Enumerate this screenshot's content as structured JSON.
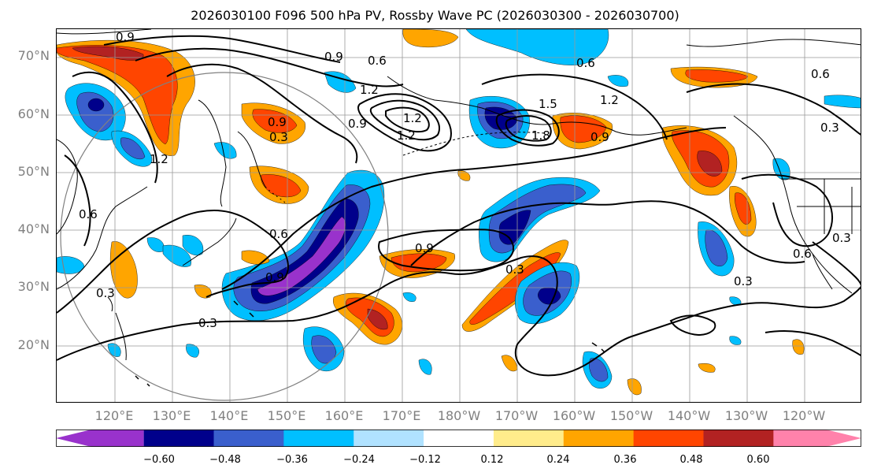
{
  "title": "2026030100 F096 500 hPa PV, Rossby Wave PC (2026030300 - 2026030700)",
  "map": {
    "lat_labels": [
      "70°N",
      "60°N",
      "50°N",
      "40°N",
      "30°N",
      "20°N"
    ],
    "lon_labels": [
      "120°E",
      "130°E",
      "140°E",
      "150°E",
      "160°E",
      "170°E",
      "180°W",
      "170°W",
      "160°W",
      "150°W",
      "140°W",
      "130°W",
      "120°W"
    ],
    "contour_labels": [
      {
        "id": "c1",
        "text": "0.9"
      },
      {
        "id": "c2",
        "text": "0.9"
      },
      {
        "id": "c3",
        "text": "0.6"
      },
      {
        "id": "c4",
        "text": "1.2"
      },
      {
        "id": "c5",
        "text": "0.9"
      },
      {
        "id": "c6",
        "text": "0.6"
      },
      {
        "id": "c7",
        "text": "1.2"
      },
      {
        "id": "c8",
        "text": "1.5"
      },
      {
        "id": "c9",
        "text": "1.8"
      },
      {
        "id": "c10",
        "text": "0.9"
      },
      {
        "id": "c11",
        "text": "0.9"
      },
      {
        "id": "c12",
        "text": "0.3"
      },
      {
        "id": "c13",
        "text": "1.2"
      },
      {
        "id": "c14",
        "text": "0.6"
      },
      {
        "id": "c15",
        "text": "0.6"
      },
      {
        "id": "c16",
        "text": "0.9"
      },
      {
        "id": "c17",
        "text": "0.9"
      },
      {
        "id": "c18",
        "text": "0.3"
      },
      {
        "id": "c19",
        "text": "0.3"
      },
      {
        "id": "c20",
        "text": "0.3"
      },
      {
        "id": "c21",
        "text": "0.3"
      },
      {
        "id": "c22",
        "text": "0.6"
      },
      {
        "id": "c23",
        "text": "0.3"
      },
      {
        "id": "c24",
        "text": "1.2"
      },
      {
        "id": "c25",
        "text": "0.6"
      },
      {
        "id": "c26",
        "text": "0.3"
      },
      {
        "id": "c27",
        "text": "1.2"
      }
    ]
  },
  "colorbar": {
    "ticks": [
      "−0.60",
      "−0.48",
      "−0.36",
      "−0.24",
      "−0.12",
      "0.12",
      "0.24",
      "0.36",
      "0.48",
      "0.60"
    ],
    "colors": [
      "#9932CC",
      "#00008B",
      "#3A5FCD",
      "#00BFFF",
      "#B0E2FF",
      "#FFFFFF",
      "#FFEC8B",
      "#FFA500",
      "#FF4500",
      "#B22222",
      "#FF82AB"
    ]
  }
}
